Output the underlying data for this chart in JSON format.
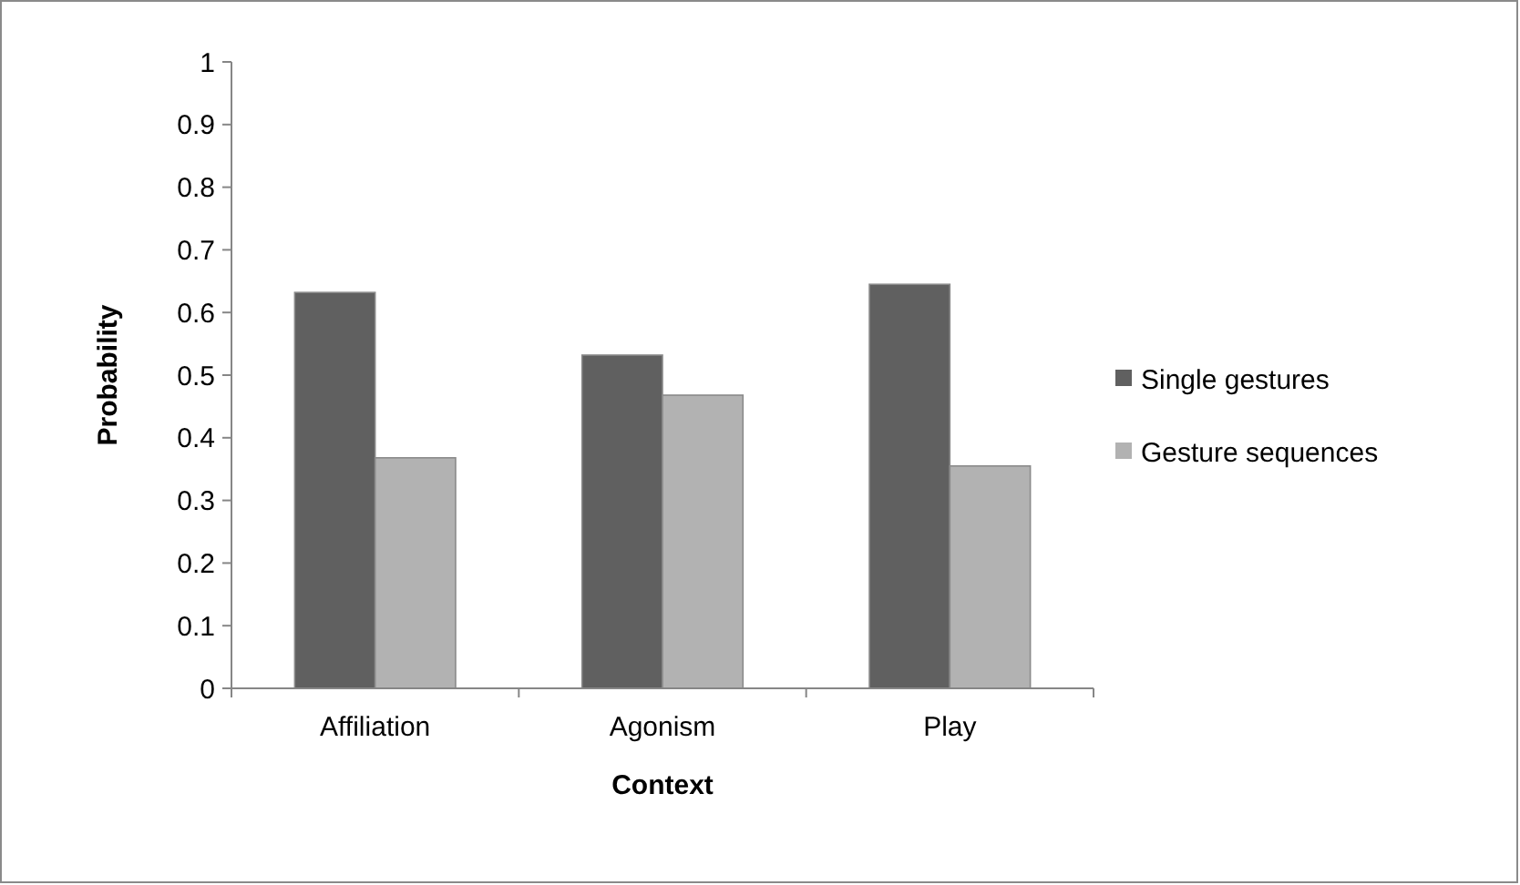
{
  "chart_data": {
    "type": "bar",
    "xlabel": "Context",
    "ylabel": "Probability",
    "categories": [
      "Affiliation",
      "Agonism",
      "Play"
    ],
    "series": [
      {
        "name": "Single gestures",
        "color": "#606060",
        "values": [
          0.632,
          0.532,
          0.645
        ]
      },
      {
        "name": "Gesture sequences",
        "color": "#b2b2b2",
        "values": [
          0.368,
          0.468,
          0.355
        ]
      }
    ],
    "ylim": [
      0,
      1
    ],
    "yticks": [
      0,
      0.1,
      0.2,
      0.3,
      0.4,
      0.5,
      0.6,
      0.7,
      0.8,
      0.9,
      1
    ],
    "grid": false,
    "legend": "right"
  }
}
